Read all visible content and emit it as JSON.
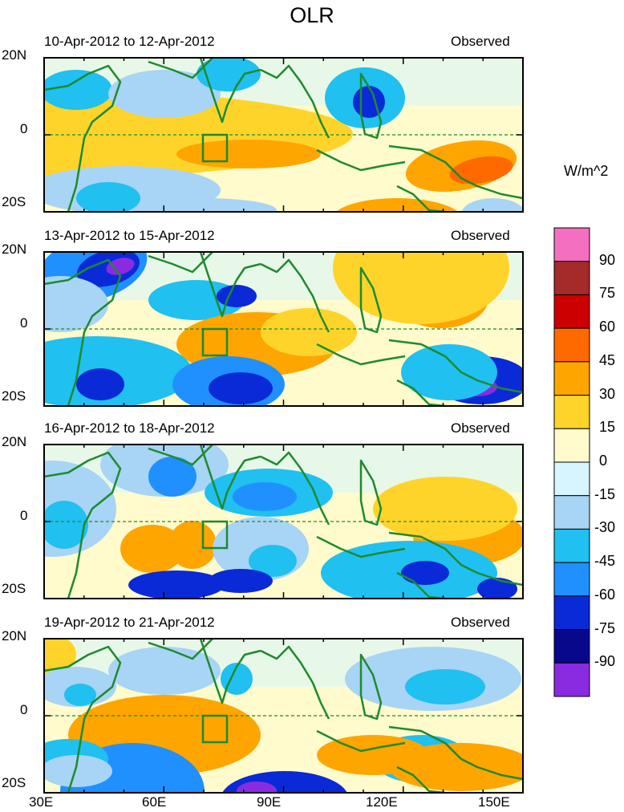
{
  "title": "OLR",
  "units": "W/m^2",
  "lat_labels": [
    "20N",
    "0",
    "20S"
  ],
  "lon_labels": [
    "30E",
    "60E",
    "90E",
    "120E",
    "150E"
  ],
  "panels": [
    {
      "date_range": "10-Apr-2012 to 12-Apr-2012",
      "label": "Observed"
    },
    {
      "date_range": "13-Apr-2012 to 15-Apr-2012",
      "label": "Observed"
    },
    {
      "date_range": "16-Apr-2012 to 18-Apr-2012",
      "label": "Observed"
    },
    {
      "date_range": "19-Apr-2012 to 21-Apr-2012",
      "label": "Observed"
    }
  ],
  "colorbar": {
    "ticks": [
      "90",
      "75",
      "60",
      "45",
      "30",
      "15",
      "0",
      "-15",
      "-30",
      "-45",
      "-60",
      "-75",
      "-90"
    ],
    "colors": [
      "#f46fc0",
      "#a52a2a",
      "#cc0000",
      "#ff6a00",
      "#ffa500",
      "#ffd42a",
      "#fffbcc",
      "#d6f5ff",
      "#a8d4f5",
      "#20c0f0",
      "#2090ff",
      "#0a2ad8",
      "#08088c",
      "#8a2be2"
    ]
  }
}
